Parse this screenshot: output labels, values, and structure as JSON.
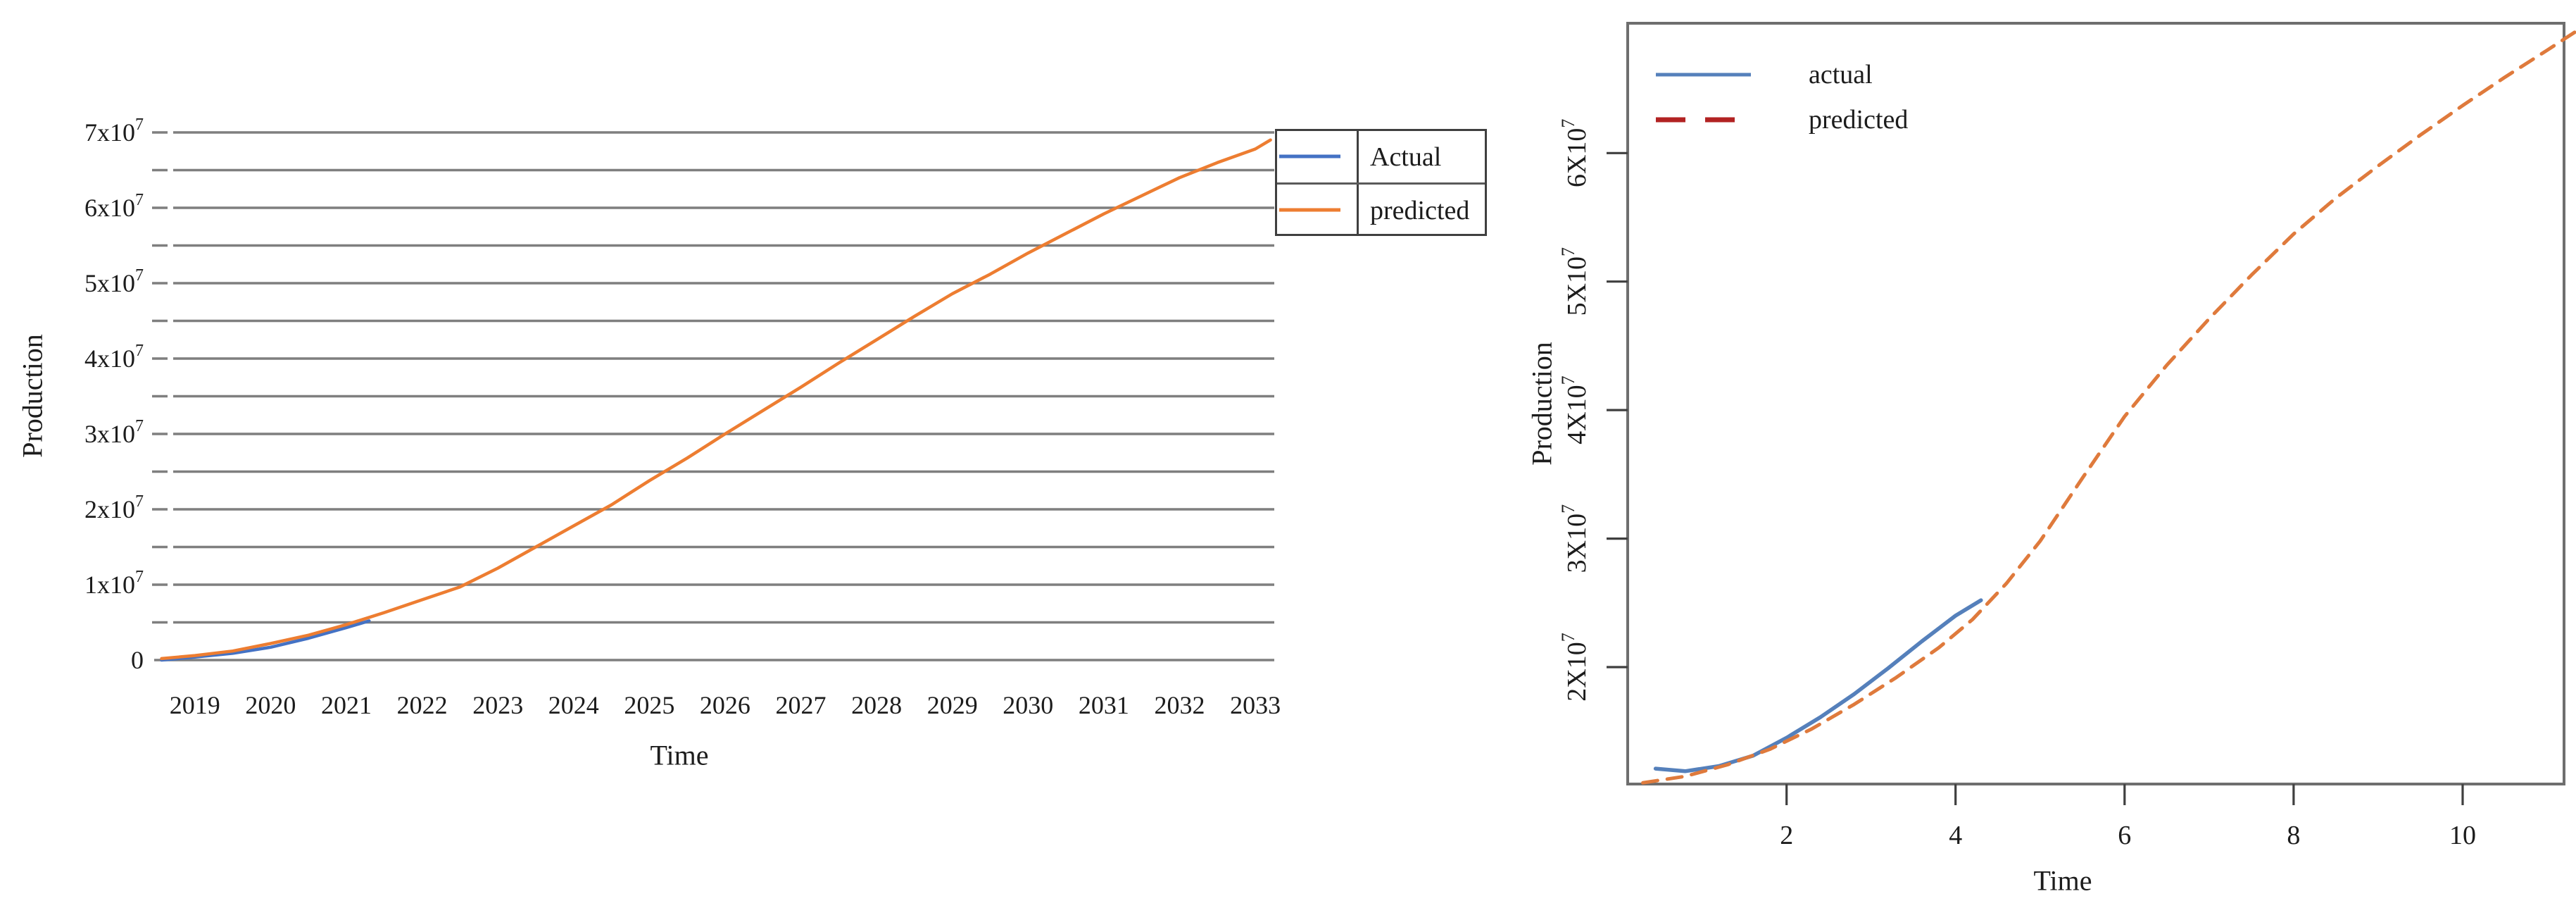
{
  "page": {
    "background": "#ffffff"
  },
  "left_chart": {
    "xlabel": "Time",
    "ylabel": "Production",
    "y_tick_labels": [
      {
        "base": "0",
        "exp": ""
      },
      {
        "base": "1x10",
        "exp": "7"
      },
      {
        "base": "2x10",
        "exp": "7"
      },
      {
        "base": "3x10",
        "exp": "7"
      },
      {
        "base": "4x10",
        "exp": "7"
      },
      {
        "base": "5x10",
        "exp": "7"
      },
      {
        "base": "6x10",
        "exp": "7"
      },
      {
        "base": "7x10",
        "exp": "7"
      }
    ],
    "x_tick_labels": [
      "2019",
      "2020",
      "2021",
      "2022",
      "2023",
      "2024",
      "2025",
      "2026",
      "2027",
      "2028",
      "2029",
      "2030",
      "2031",
      "2032",
      "2033"
    ],
    "grid_color": "#7f7f7f",
    "legend_border_color": "#3f3f3f"
  },
  "right_chart": {
    "xlabel": "Time",
    "ylabel": "Production",
    "y_tick_labels": [
      {
        "base": "2X10",
        "exp": "7"
      },
      {
        "base": "3X10",
        "exp": "7"
      },
      {
        "base": "4X10",
        "exp": "7"
      },
      {
        "base": "5X10",
        "exp": "7"
      },
      {
        "base": "6X10",
        "exp": "7"
      }
    ],
    "x_tick_labels": [
      "2",
      "4",
      "6",
      "8",
      "10"
    ],
    "frame_color": "#6e6e6e"
  },
  "chart_data": [
    {
      "type": "line",
      "title": "",
      "xlabel": "Time",
      "ylabel": "Production",
      "grid": "horizontal",
      "legend_position": "top-right-boxed",
      "x_axis": {
        "min": 2018.5,
        "max": 2033.25,
        "tick_values": [
          2019,
          2020,
          2021,
          2022,
          2023,
          2024,
          2025,
          2026,
          2027,
          2028,
          2029,
          2030,
          2031,
          2032,
          2033
        ]
      },
      "y_axis": {
        "min": 0,
        "max": 70000000,
        "label_values": [
          0,
          10000000,
          20000000,
          30000000,
          40000000,
          50000000,
          60000000,
          70000000
        ],
        "gridline_step": 5000000
      },
      "series": [
        {
          "name": "Actual",
          "color": "#4472c4",
          "style": "solid",
          "points": [
            [
              2018.56,
              0
            ],
            [
              2019,
              400000
            ],
            [
              2019.5,
              900000
            ],
            [
              2020,
              1700000
            ],
            [
              2020.5,
              2900000
            ],
            [
              2021,
              4300000
            ],
            [
              2021.3,
              5200000
            ]
          ]
        },
        {
          "name": "predicted",
          "color": "#ed7d31",
          "style": "solid",
          "points": [
            [
              2018.56,
              200000
            ],
            [
              2019,
              600000
            ],
            [
              2019.5,
              1200000
            ],
            [
              2020,
              2200000
            ],
            [
              2020.5,
              3300000
            ],
            [
              2021,
              4700000
            ],
            [
              2021.5,
              6300000
            ],
            [
              2022,
              8000000
            ],
            [
              2022.5,
              9700000
            ],
            [
              2023,
              12200000
            ],
            [
              2023.5,
              15000000
            ],
            [
              2024,
              17800000
            ],
            [
              2024.5,
              20600000
            ],
            [
              2025,
              23800000
            ],
            [
              2025.5,
              26800000
            ],
            [
              2026,
              30000000
            ],
            [
              2026.5,
              33100000
            ],
            [
              2027,
              36200000
            ],
            [
              2027.5,
              39400000
            ],
            [
              2028,
              42500000
            ],
            [
              2028.5,
              45600000
            ],
            [
              2029,
              48600000
            ],
            [
              2029.5,
              51200000
            ],
            [
              2030,
              54000000
            ],
            [
              2030.5,
              56600000
            ],
            [
              2031,
              59200000
            ],
            [
              2031.5,
              61600000
            ],
            [
              2032,
              64000000
            ],
            [
              2032.5,
              66000000
            ],
            [
              2033,
              67800000
            ],
            [
              2033.2,
              69000000
            ]
          ]
        }
      ]
    },
    {
      "type": "line",
      "title": "",
      "xlabel": "Time",
      "ylabel": "Production",
      "grid": "none",
      "legend_position": "top-left-inside",
      "x_axis": {
        "min": 0.12,
        "max": 11.2,
        "tick_values": [
          2,
          4,
          6,
          8,
          10
        ]
      },
      "y_axis": {
        "min": 10900000,
        "max": 70100000,
        "label_values": [
          20000000,
          30000000,
          40000000,
          50000000,
          60000000
        ]
      },
      "series": [
        {
          "name": "actual",
          "color": "#5580bb",
          "legend_color": "#5580bb",
          "style": "solid",
          "points": [
            [
              0.45,
              12100000
            ],
            [
              0.8,
              11900000
            ],
            [
              1.2,
              12300000
            ],
            [
              1.6,
              13100000
            ],
            [
              2,
              14500000
            ],
            [
              2.4,
              16100000
            ],
            [
              2.8,
              17900000
            ],
            [
              3.2,
              19900000
            ],
            [
              3.6,
              22000000
            ],
            [
              4,
              24000000
            ],
            [
              4.3,
              25200000
            ]
          ]
        },
        {
          "name": "predicted",
          "color": "#df7a3c",
          "legend_color": "#b22222",
          "style": "dashed",
          "points": [
            [
              0.3,
              11000000
            ],
            [
              0.8,
              11500000
            ],
            [
              1.3,
              12400000
            ],
            [
              1.8,
              13600000
            ],
            [
              2.3,
              15200000
            ],
            [
              2.8,
              17100000
            ],
            [
              3.3,
              19200000
            ],
            [
              3.8,
              21500000
            ],
            [
              4.2,
              23700000
            ],
            [
              4.6,
              26500000
            ],
            [
              5,
              29800000
            ],
            [
              5.5,
              34700000
            ],
            [
              6,
              39500000
            ],
            [
              6.5,
              43500000
            ],
            [
              7,
              47100000
            ],
            [
              7.5,
              50500000
            ],
            [
              8,
              53700000
            ],
            [
              8.5,
              56500000
            ],
            [
              9,
              59000000
            ],
            [
              9.5,
              61400000
            ],
            [
              10,
              63700000
            ],
            [
              10.5,
              65900000
            ],
            [
              11,
              68000000
            ],
            [
              11.35,
              69500000
            ]
          ]
        }
      ]
    }
  ]
}
